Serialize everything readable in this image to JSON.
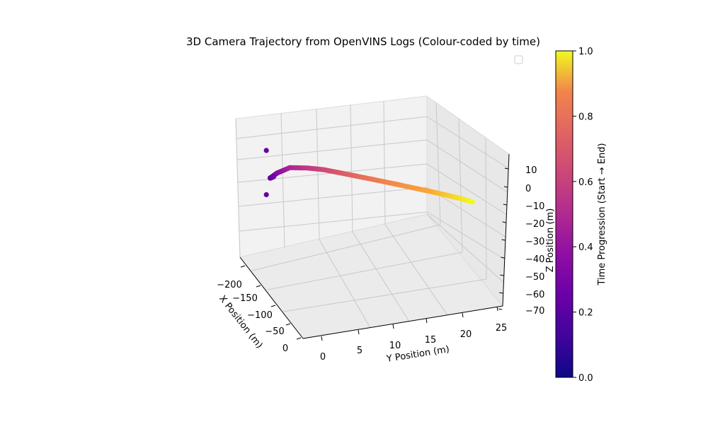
{
  "chart_data": {
    "type": "scatter",
    "projection": "3d",
    "title": "3D Camera Trajectory from OpenVINS Logs (Colour-coded by time)",
    "xlabel": "X Position (m)",
    "ylabel": "Y Position (m)",
    "zlabel": "Z Position (m)",
    "xlim": [
      -230,
      10
    ],
    "ylim": [
      -3,
      27
    ],
    "zlim": [
      -73,
      17
    ],
    "x_ticks": [
      "0",
      "−50",
      "−100",
      "−150",
      "−200"
    ],
    "y_ticks": [
      "0",
      "5",
      "10",
      "15",
      "20",
      "25"
    ],
    "z_ticks": [
      "10",
      "0",
      "−10",
      "−20",
      "−30",
      "−40",
      "−50",
      "−60",
      "−70"
    ],
    "grid": true,
    "legend": "upper right (empty)",
    "colormap": "plasma",
    "colorbar": {
      "label": "Time Progression (Start → End)",
      "ticks": [
        "0.0",
        "0.2",
        "0.4",
        "0.6",
        "0.8",
        "1.0"
      ],
      "range": [
        0,
        1
      ]
    },
    "trajectory": {
      "x": [
        -196,
        -198,
        -198,
        -190,
        -182,
        -170,
        -160,
        -150,
        -140,
        -130,
        -120,
        -110,
        -100,
        -90,
        -82,
        -76,
        -70
      ],
      "y": [
        0.2,
        0.1,
        0.0,
        1.0,
        2.6,
        4.8,
        6.8,
        8.8,
        10.8,
        12.8,
        14.8,
        16.8,
        18.8,
        20.8,
        22.6,
        24.2,
        25.6
      ],
      "z": [
        -10,
        10,
        -22,
        -6,
        -2,
        -2,
        -3,
        -5,
        -7,
        -9,
        -11,
        -13,
        -15,
        -17,
        -19,
        -21,
        -23
      ],
      "t": [
        0.12,
        0.2,
        0.22,
        0.3,
        0.42,
        0.5,
        0.56,
        0.62,
        0.68,
        0.73,
        0.78,
        0.82,
        0.86,
        0.9,
        0.94,
        0.97,
        1.0
      ]
    },
    "outliers": [
      {
        "x": -198,
        "y": -0.3,
        "z": 10,
        "t": 0.2
      },
      {
        "x": -198,
        "y": -0.3,
        "z": -22,
        "t": 0.2
      }
    ]
  }
}
